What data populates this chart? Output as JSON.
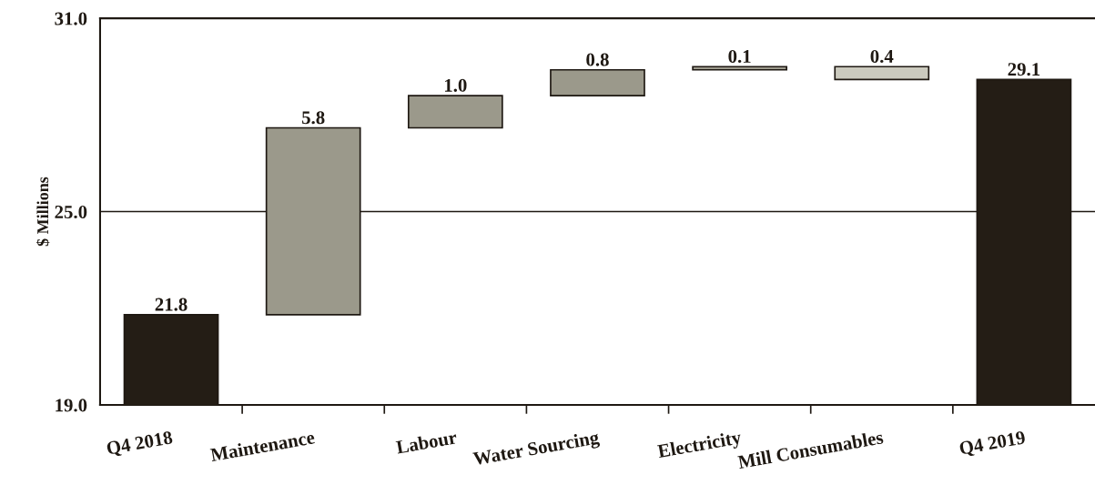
{
  "chart_data": {
    "type": "bar",
    "categories": [
      "Q4 2018",
      "Maintenance",
      "Labour",
      "Water Sourcing",
      "Electricity",
      "Mill Consumables",
      "Q4 2019"
    ],
    "values": [
      21.8,
      5.8,
      1.0,
      0.8,
      0.1,
      -0.4,
      29.1
    ],
    "base": [
      null,
      21.8,
      27.6,
      28.6,
      29.4,
      29.5,
      null
    ],
    "colors": [
      "#241d15",
      "#9b998b",
      "#9b998b",
      "#9b998b",
      "#9b998b",
      "#cbcabe",
      "#241d15"
    ],
    "value_labels": [
      "21.8",
      "5.8",
      "1.0",
      "0.8",
      "0.1",
      "0.4",
      "29.1"
    ],
    "ylabel": "$ Millions",
    "ylim": [
      19,
      31
    ],
    "yticks": [
      {
        "value": 19,
        "label": "19.0"
      },
      {
        "value": 25,
        "label": "25.0"
      },
      {
        "value": 31,
        "label": "31.0"
      }
    ],
    "grid": "y"
  }
}
